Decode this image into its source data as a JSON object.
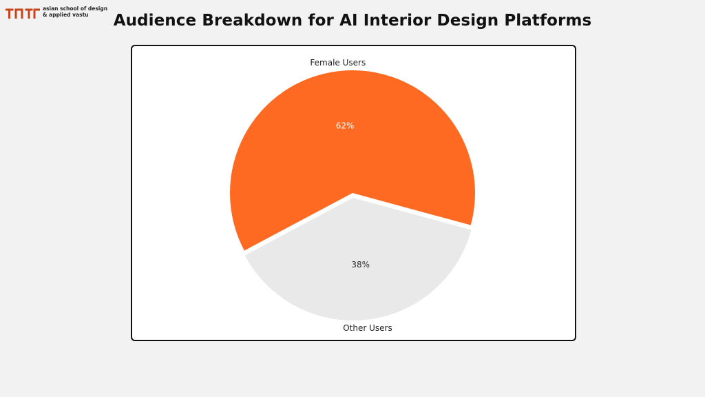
{
  "brand": {
    "line1": "asian school of design",
    "line2": "& applied vastu",
    "accent": "#c8441a",
    "dark": "#3a2a22"
  },
  "chart_data": {
    "type": "pie",
    "title": "Audience Breakdown for AI Interior Design Platforms",
    "slices": [
      {
        "label": "Female Users",
        "value": 62,
        "display": "62%",
        "color": "#ff6a22",
        "text_color": "#ffffff",
        "explode": false
      },
      {
        "label": "Other Users",
        "value": 38,
        "display": "38%",
        "color": "#e9e9e9",
        "text_color": "#333333",
        "explode": true
      }
    ]
  }
}
